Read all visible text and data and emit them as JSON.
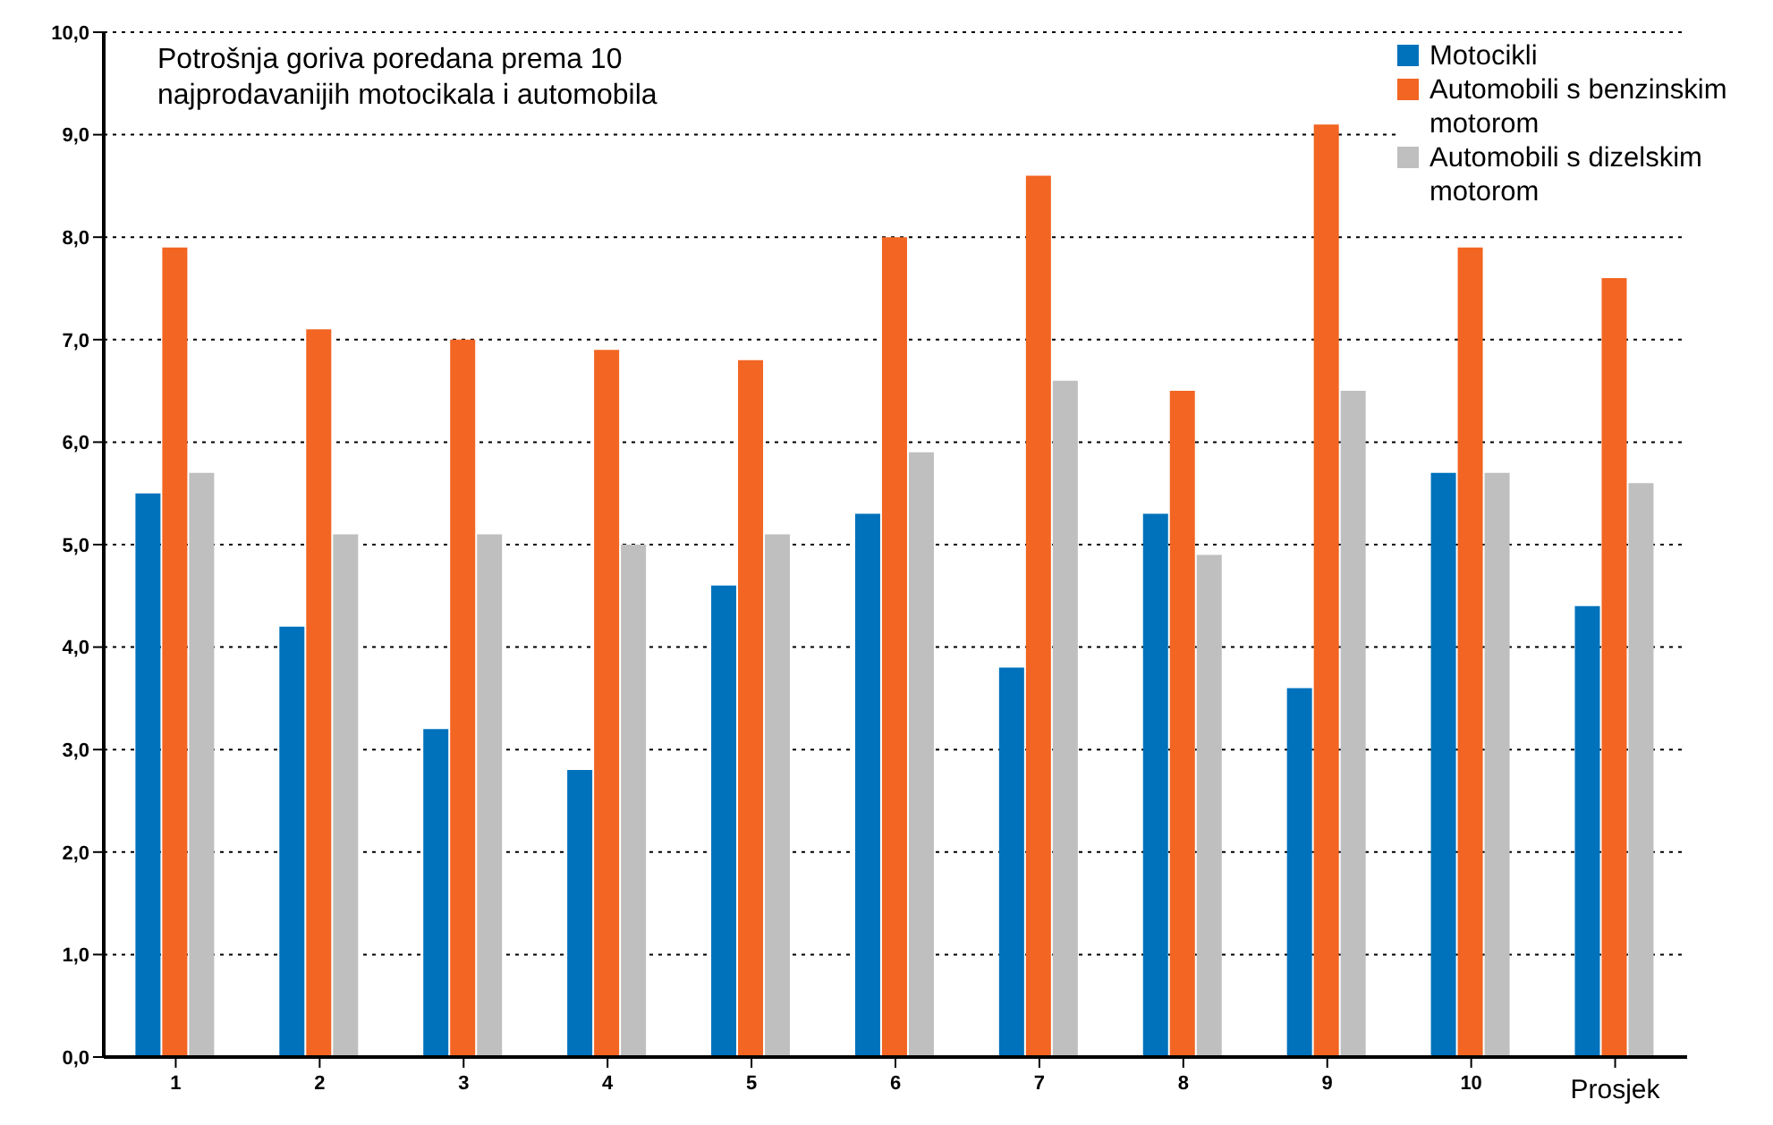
{
  "chart_data": {
    "type": "bar",
    "title": "Potrošnja goriva poredana prema 10 najprodavanijih motocikala i automobila",
    "categories": [
      "1",
      "2",
      "3",
      "4",
      "5",
      "6",
      "7",
      "8",
      "9",
      "10",
      "Prosjek"
    ],
    "series": [
      {
        "name": "Motocikli",
        "color": "#0072bc",
        "values": [
          5.5,
          4.2,
          3.2,
          2.8,
          4.6,
          5.3,
          3.8,
          5.3,
          3.6,
          5.7,
          4.4
        ]
      },
      {
        "name": "Automobili s benzinskim motorom",
        "color": "#f26522",
        "values": [
          7.9,
          7.1,
          7.0,
          6.9,
          6.8,
          8.0,
          8.6,
          6.5,
          9.1,
          7.9,
          7.6
        ]
      },
      {
        "name": "Automobili s dizelskim motorom",
        "color": "#bfbfbf",
        "values": [
          5.7,
          5.1,
          5.1,
          5.0,
          5.1,
          5.9,
          6.6,
          4.9,
          6.5,
          5.7,
          5.6
        ]
      }
    ],
    "ylim": [
      0,
      10
    ],
    "yticks": [
      {
        "value": 0,
        "label": "0,0"
      },
      {
        "value": 1,
        "label": "1,0"
      },
      {
        "value": 2,
        "label": "2,0"
      },
      {
        "value": 3,
        "label": "3,0"
      },
      {
        "value": 4,
        "label": "4,0"
      },
      {
        "value": 5,
        "label": "5,0"
      },
      {
        "value": 6,
        "label": "6,0"
      },
      {
        "value": 7,
        "label": "7,0"
      },
      {
        "value": 8,
        "label": "8,0"
      },
      {
        "value": 9,
        "label": "9,0"
      },
      {
        "value": 10,
        "label": "10,0"
      }
    ],
    "grid": "y",
    "legend": "top right"
  }
}
